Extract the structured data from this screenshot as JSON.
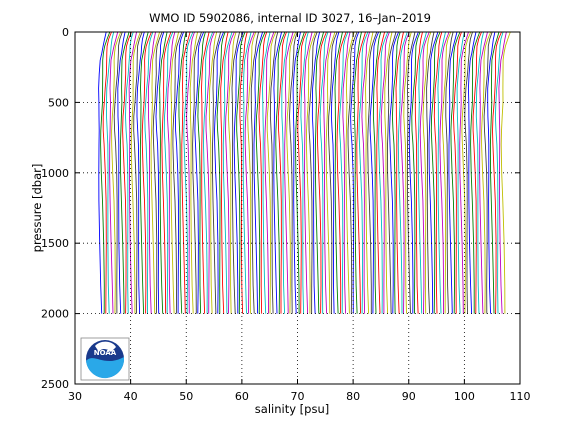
{
  "chart_data": {
    "type": "line",
    "title": "WMO ID 5902086, internal ID 3027, 16–Jan–2019",
    "xlabel": "salinity [psu]",
    "ylabel": "pressure [dbar]",
    "xlim": [
      30,
      110
    ],
    "ylim": [
      0,
      2500
    ],
    "y_reversed": true,
    "xticks": [
      30,
      40,
      50,
      60,
      70,
      80,
      90,
      100,
      110
    ],
    "yticks": [
      0,
      500,
      1000,
      1500,
      2000,
      2500
    ],
    "grid": "dotted",
    "legend": "none",
    "series_description": "Waterfall of successive salinity profiles; each profile offset by about 0.5 psu along x, profiles 0 to 2000 dbar",
    "profile_count": 146,
    "profile_offset_psu": 0.5,
    "base_profile": {
      "pressure": [
        0,
        50,
        100,
        150,
        200,
        300,
        400,
        500,
        600,
        700,
        800,
        1000,
        1200,
        1500,
        1800,
        2000
      ],
      "salinity": [
        35.6,
        35.2,
        34.9,
        34.75,
        34.6,
        34.5,
        34.35,
        34.3,
        34.2,
        34.2,
        34.25,
        34.35,
        34.45,
        34.55,
        34.62,
        34.68
      ]
    },
    "colors": [
      "#0000ff",
      "#008000",
      "#ff0000",
      "#00bfbf",
      "#bf00bf",
      "#bfbf00",
      "#404040"
    ]
  },
  "logo": {
    "name": "NOAA",
    "text": "NOAA"
  }
}
